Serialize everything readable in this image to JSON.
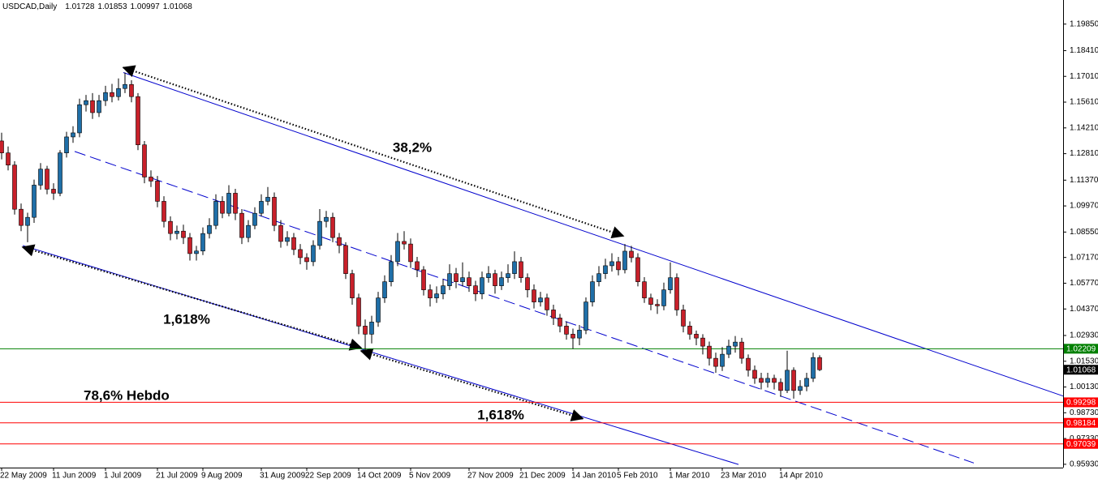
{
  "chart_data": {
    "type": "candlestick",
    "title": "USDCAD,Daily",
    "header_values": [
      1.01728,
      1.01853,
      1.00997,
      1.01068
    ],
    "ylim": [
      0.9575,
      1.2116
    ],
    "yticks": [
      {
        "value": 1.1985,
        "label": "1.19850"
      },
      {
        "value": 1.1841,
        "label": "1.18410"
      },
      {
        "value": 1.1701,
        "label": "1.17010"
      },
      {
        "value": 1.1561,
        "label": "1.15610"
      },
      {
        "value": 1.1421,
        "label": "1.14210"
      },
      {
        "value": 1.1281,
        "label": "1.12810"
      },
      {
        "value": 1.1137,
        "label": "1.11370"
      },
      {
        "value": 1.0997,
        "label": "1.09970"
      },
      {
        "value": 1.0855,
        "label": "1.08550"
      },
      {
        "value": 1.0717,
        "label": "1.07170"
      },
      {
        "value": 1.0577,
        "label": "1.05770"
      },
      {
        "value": 1.0437,
        "label": "1.04370"
      },
      {
        "value": 1.0293,
        "label": "1.02930"
      },
      {
        "value": 1.0153,
        "label": "1.01530"
      },
      {
        "value": 1.0013,
        "label": "1.00130"
      },
      {
        "value": 0.9873,
        "label": "0.98730"
      },
      {
        "value": 0.9733,
        "label": "0.97330"
      },
      {
        "value": 0.9593,
        "label": "0.95930"
      }
    ],
    "xticks": [
      {
        "value": 0,
        "label": "22 May 2009"
      },
      {
        "value": 8,
        "label": "11 Jun 2009"
      },
      {
        "value": 16,
        "label": "1 Jul 2009"
      },
      {
        "value": 24,
        "label": "21 Jul 2009"
      },
      {
        "value": 31,
        "label": "9 Aug 2009"
      },
      {
        "value": 40,
        "label": "31 Aug 2009"
      },
      {
        "value": 47,
        "label": "22 Sep 2009"
      },
      {
        "value": 55,
        "label": "14 Oct 2009"
      },
      {
        "value": 63,
        "label": "5 Nov 2009"
      },
      {
        "value": 72,
        "label": "27 Nov 2009"
      },
      {
        "value": 80,
        "label": "21 Dec 2009"
      },
      {
        "value": 88,
        "label": "14 Jan 2010"
      },
      {
        "value": 95,
        "label": "5 Feb 2010"
      },
      {
        "value": 103,
        "label": "1 Mar 2010"
      },
      {
        "value": 111,
        "label": "23 Mar 2010"
      },
      {
        "value": 120,
        "label": "14 Apr 2010"
      }
    ],
    "up_color": "#1f6fa8",
    "down_color": "#c8202a",
    "candles": [
      [
        1.135,
        1.1395,
        1.125,
        1.1285
      ],
      [
        1.1285,
        1.132,
        1.119,
        1.1219
      ],
      [
        1.1219,
        1.124,
        1.095,
        1.0979
      ],
      [
        1.0979,
        1.101,
        1.086,
        1.0891
      ],
      [
        1.0891,
        1.096,
        1.08,
        1.0935
      ],
      [
        1.0935,
        1.114,
        1.0905,
        1.111
      ],
      [
        1.111,
        1.123,
        1.1085,
        1.1197
      ],
      [
        1.1197,
        1.1215,
        1.106,
        1.1088
      ],
      [
        1.1088,
        1.112,
        1.103,
        1.1066
      ],
      [
        1.1066,
        1.13,
        1.105,
        1.1285
      ],
      [
        1.1285,
        1.14,
        1.126,
        1.1372
      ],
      [
        1.1372,
        1.143,
        1.134,
        1.1394
      ],
      [
        1.1394,
        1.158,
        1.137,
        1.1547
      ],
      [
        1.1547,
        1.16,
        1.151,
        1.1569
      ],
      [
        1.1569,
        1.161,
        1.147,
        1.1504
      ],
      [
        1.1504,
        1.16,
        1.148,
        1.1569
      ],
      [
        1.1569,
        1.165,
        1.154,
        1.1613
      ],
      [
        1.1613,
        1.166,
        1.156,
        1.1591
      ],
      [
        1.1591,
        1.169,
        1.157,
        1.1635
      ],
      [
        1.1635,
        1.1722,
        1.161,
        1.1657
      ],
      [
        1.1657,
        1.168,
        1.156,
        1.1591
      ],
      [
        1.1591,
        1.161,
        1.13,
        1.1329
      ],
      [
        1.1329,
        1.135,
        1.112,
        1.1154
      ],
      [
        1.1154,
        1.119,
        1.11,
        1.1132
      ],
      [
        1.1132,
        1.116,
        1.099,
        1.1022
      ],
      [
        1.1022,
        1.105,
        1.088,
        1.0913
      ],
      [
        1.0913,
        1.094,
        1.081,
        1.0847
      ],
      [
        1.0847,
        1.089,
        1.0815,
        1.086
      ],
      [
        1.086,
        1.0895,
        1.079,
        1.0825
      ],
      [
        1.0825,
        1.085,
        1.07,
        1.0738
      ],
      [
        1.0738,
        1.078,
        1.07,
        1.0752
      ],
      [
        1.0752,
        1.088,
        1.073,
        1.0847
      ],
      [
        1.0847,
        1.093,
        1.082,
        1.0891
      ],
      [
        1.0891,
        1.106,
        1.087,
        1.1022
      ],
      [
        1.1022,
        1.105,
        1.093,
        1.0957
      ],
      [
        1.0957,
        1.111,
        1.094,
        1.1066
      ],
      [
        1.1066,
        1.109,
        1.092,
        1.0957
      ],
      [
        1.0957,
        1.098,
        1.079,
        1.0825
      ],
      [
        1.0825,
        1.092,
        1.08,
        1.0891
      ],
      [
        1.0891,
        1.099,
        1.087,
        1.0957
      ],
      [
        1.0957,
        1.106,
        1.094,
        1.1022
      ],
      [
        1.1022,
        1.11,
        1.1,
        1.1044
      ],
      [
        1.1044,
        1.107,
        1.086,
        1.0891
      ],
      [
        1.0891,
        1.092,
        1.077,
        1.0804
      ],
      [
        1.0804,
        1.086,
        1.078,
        1.0825
      ],
      [
        1.0825,
        1.085,
        1.073,
        1.076
      ],
      [
        1.076,
        1.079,
        1.068,
        1.0716
      ],
      [
        1.0716,
        1.074,
        1.065,
        1.0694
      ],
      [
        1.0694,
        1.081,
        1.067,
        1.0782
      ],
      [
        1.0782,
        1.098,
        1.076,
        1.0913
      ],
      [
        1.0913,
        1.097,
        1.088,
        1.0935
      ],
      [
        1.0935,
        1.096,
        1.08,
        1.0825
      ],
      [
        1.0825,
        1.085,
        1.074,
        1.0782
      ],
      [
        1.0782,
        1.08,
        1.06,
        1.0629
      ],
      [
        1.0629,
        1.065,
        1.046,
        1.0497
      ],
      [
        1.0497,
        1.052,
        1.03,
        1.0344
      ],
      [
        1.0344,
        1.038,
        1.021,
        1.03
      ],
      [
        1.03,
        1.04,
        1.025,
        1.0366
      ],
      [
        1.0366,
        1.053,
        1.034,
        1.0497
      ],
      [
        1.0497,
        1.062,
        1.047,
        1.0585
      ],
      [
        1.0585,
        1.073,
        1.056,
        1.0694
      ],
      [
        1.0694,
        1.085,
        1.067,
        1.0804
      ],
      [
        1.0804,
        1.086,
        1.076,
        1.079
      ],
      [
        1.079,
        1.082,
        1.066,
        1.0694
      ],
      [
        1.0694,
        1.072,
        1.061,
        1.065
      ],
      [
        1.065,
        1.067,
        1.051,
        1.0541
      ],
      [
        1.0541,
        1.057,
        1.045,
        1.0497
      ],
      [
        1.0497,
        1.056,
        1.047,
        1.0519
      ],
      [
        1.0519,
        1.06,
        1.049,
        1.0563
      ],
      [
        1.0563,
        1.068,
        1.054,
        1.0629
      ],
      [
        1.0629,
        1.066,
        1.055,
        1.0585
      ],
      [
        1.0585,
        1.069,
        1.056,
        1.0607
      ],
      [
        1.0607,
        1.064,
        1.053,
        1.0563
      ],
      [
        1.0563,
        1.059,
        1.048,
        1.0519
      ],
      [
        1.0519,
        1.064,
        1.049,
        1.0607
      ],
      [
        1.0607,
        1.067,
        1.058,
        1.0629
      ],
      [
        1.0629,
        1.065,
        1.052,
        1.0563
      ],
      [
        1.0563,
        1.064,
        1.054,
        1.0607
      ],
      [
        1.0607,
        1.068,
        1.058,
        1.0629
      ],
      [
        1.0629,
        1.075,
        1.06,
        1.0694
      ],
      [
        1.0694,
        1.072,
        1.058,
        1.0607
      ],
      [
        1.0607,
        1.063,
        1.05,
        1.0541
      ],
      [
        1.0541,
        1.057,
        1.044,
        1.0475
      ],
      [
        1.0475,
        1.053,
        1.045,
        1.0497
      ],
      [
        1.0497,
        1.052,
        1.04,
        1.0432
      ],
      [
        1.0432,
        1.046,
        1.035,
        1.0388
      ],
      [
        1.0388,
        1.041,
        1.031,
        1.0344
      ],
      [
        1.0344,
        1.037,
        1.027,
        1.03
      ],
      [
        1.03,
        1.033,
        1.022,
        1.0279
      ],
      [
        1.0279,
        1.035,
        1.024,
        1.0322
      ],
      [
        1.0322,
        1.05,
        1.03,
        1.0475
      ],
      [
        1.0475,
        1.062,
        1.045,
        1.0585
      ],
      [
        1.0585,
        1.067,
        1.056,
        1.0629
      ],
      [
        1.0629,
        1.071,
        1.06,
        1.0672
      ],
      [
        1.0672,
        1.074,
        1.064,
        1.0694
      ],
      [
        1.0694,
        1.072,
        1.062,
        1.065
      ],
      [
        1.065,
        1.079,
        1.063,
        1.0751
      ],
      [
        1.0751,
        1.078,
        1.069,
        1.0716
      ],
      [
        1.0716,
        1.074,
        1.056,
        1.0585
      ],
      [
        1.0585,
        1.061,
        1.047,
        1.0497
      ],
      [
        1.0497,
        1.052,
        1.043,
        1.0462
      ],
      [
        1.0462,
        1.049,
        1.041,
        1.0454
      ],
      [
        1.0454,
        1.058,
        1.043,
        1.0541
      ],
      [
        1.0541,
        1.069,
        1.052,
        1.0607
      ],
      [
        1.0607,
        1.063,
        1.04,
        1.0432
      ],
      [
        1.0432,
        1.046,
        1.031,
        1.0344
      ],
      [
        1.0344,
        1.037,
        1.027,
        1.03
      ],
      [
        1.03,
        1.032,
        1.024,
        1.0279
      ],
      [
        1.0279,
        1.03,
        1.019,
        1.0235
      ],
      [
        1.0235,
        1.026,
        1.013,
        1.0169
      ],
      [
        1.0169,
        1.02,
        1.009,
        1.0125
      ],
      [
        1.0125,
        1.023,
        1.01,
        1.0191
      ],
      [
        1.0191,
        1.027,
        1.017,
        1.0235
      ],
      [
        1.0235,
        1.029,
        1.02,
        1.0257
      ],
      [
        1.0257,
        1.028,
        1.014,
        1.0169
      ],
      [
        1.0169,
        1.019,
        1.007,
        1.0104
      ],
      [
        1.0104,
        1.013,
        1.003,
        1.006
      ],
      [
        1.006,
        1.009,
        1.0,
        1.0038
      ],
      [
        1.0038,
        1.009,
        1.001,
        1.006
      ],
      [
        1.006,
        1.008,
        1.0,
        1.0038
      ],
      [
        1.0038,
        1.006,
        0.996,
        0.9994
      ],
      [
        0.9994,
        1.021,
        0.998,
        1.0104
      ],
      [
        1.0104,
        1.012,
        0.995,
        0.9994
      ],
      [
        0.9994,
        1.005,
        0.997,
        1.0016
      ],
      [
        1.0016,
        1.009,
        0.999,
        1.006
      ],
      [
        1.006,
        1.02,
        1.004,
        1.0173
      ],
      [
        1.01728,
        1.01853,
        1.00997,
        1.01068
      ]
    ],
    "levels": [
      {
        "value": 1.02209,
        "color": "#008000"
      },
      {
        "value": 0.99298,
        "color": "#ff0000"
      },
      {
        "value": 0.98184,
        "color": "#ff0000"
      },
      {
        "value": 0.97039,
        "color": "#ff0000"
      }
    ],
    "current_price": 1.01068,
    "trendlines": [
      {
        "x": [
          18.75,
          163.5
        ],
        "y": [
          1.1722,
          0.9964
        ],
        "dashed": false
      },
      {
        "x": [
          11.25,
          149.75
        ],
        "y": [
          1.1293,
          0.96
        ],
        "dashed": true
      },
      {
        "x": [
          3.25,
          113.5
        ],
        "y": [
          1.0782,
          0.9592
        ],
        "dashed": false
      }
    ],
    "arrows": [
      {
        "x": [
          18.75,
          95.75
        ],
        "y": [
          1.1749,
          1.0834
        ]
      },
      {
        "x": [
          3.25,
          55.375
        ],
        "y": [
          1.0773,
          1.0226
        ]
      },
      {
        "x": [
          55.375,
          89.5
        ],
        "y": [
          1.0209,
          0.9841
        ]
      }
    ],
    "annotations": [
      "38,2%",
      "1,618%",
      "78,6% Hebdo",
      "1,618%"
    ]
  }
}
